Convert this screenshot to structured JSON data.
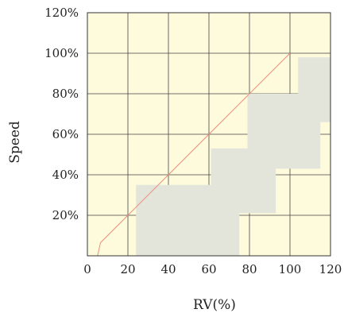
{
  "chart_data": {
    "type": "line",
    "title": "",
    "xlabel": "RV(%)",
    "ylabel": "Speed",
    "xlim": [
      0,
      120
    ],
    "ylim": [
      0,
      120
    ],
    "x_ticks": [
      {
        "value": 0,
        "label": "0"
      },
      {
        "value": 20,
        "label": "20"
      },
      {
        "value": 40,
        "label": "40"
      },
      {
        "value": 60,
        "label": "60"
      },
      {
        "value": 80,
        "label": "80"
      },
      {
        "value": 100,
        "label": "100"
      },
      {
        "value": 120,
        "label": "120"
      }
    ],
    "y_ticks": [
      {
        "value": 20,
        "label": "20%"
      },
      {
        "value": 40,
        "label": "40%"
      },
      {
        "value": 60,
        "label": "60%"
      },
      {
        "value": 80,
        "label": "80%"
      },
      {
        "value": 100,
        "label": "100%"
      },
      {
        "value": 120,
        "label": "120%"
      }
    ],
    "grid": true,
    "legend": "none",
    "series": [
      {
        "color": "#e8917f",
        "x": [
          5,
          6.5,
          100
        ],
        "y": [
          0,
          6.5,
          100
        ]
      }
    ],
    "colors": {
      "plot_background": "#fdfbdc",
      "grid": "#444444",
      "frame": "#333333",
      "overlay": "#e4e5da"
    },
    "overlays": [
      {
        "x0": 24,
        "x1": 75,
        "y0": 0,
        "y1": 35
      },
      {
        "x0": 61,
        "x1": 93,
        "y0": 21,
        "y1": 53
      },
      {
        "x0": 79,
        "x1": 115,
        "y0": 43,
        "y1": 80
      },
      {
        "x0": 104,
        "x1": 120,
        "y0": 66,
        "y1": 98
      }
    ]
  }
}
